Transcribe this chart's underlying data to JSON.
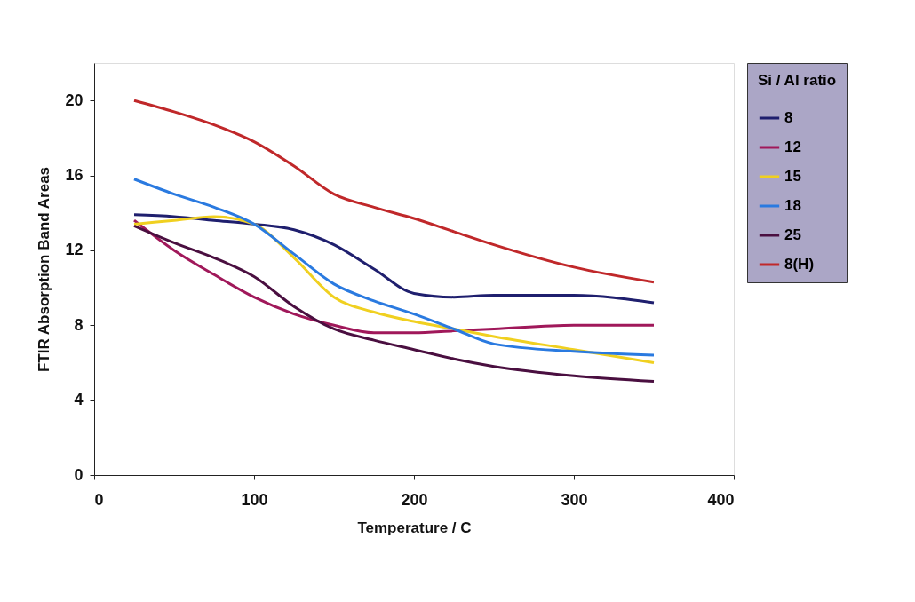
{
  "chart_data": {
    "type": "line",
    "xlabel": "Temperature / C",
    "ylabel": "FTIR Absorption Band Areas",
    "legend_title": "Si / Al ratio",
    "x": [
      25,
      50,
      75,
      100,
      125,
      150,
      175,
      200,
      225,
      250,
      300,
      350
    ],
    "series": [
      {
        "name": "8",
        "color": "#1f1f6e",
        "values": [
          13.9,
          13.8,
          13.6,
          13.4,
          13.1,
          12.3,
          11.0,
          9.7,
          9.5,
          9.6,
          9.6,
          9.2
        ]
      },
      {
        "name": "12",
        "color": "#a0185a",
        "values": [
          13.6,
          12.0,
          10.7,
          9.5,
          8.6,
          8.0,
          7.6,
          7.6,
          7.7,
          7.8,
          8.0,
          8.0
        ]
      },
      {
        "name": "15",
        "color": "#f0d020",
        "values": [
          13.4,
          13.6,
          13.8,
          13.4,
          11.6,
          9.5,
          8.7,
          8.2,
          7.8,
          7.4,
          6.7,
          6.0
        ]
      },
      {
        "name": "18",
        "color": "#2a7ae0",
        "values": [
          15.8,
          15.0,
          14.3,
          13.4,
          11.8,
          10.2,
          9.3,
          8.6,
          7.8,
          7.0,
          6.6,
          6.4
        ]
      },
      {
        "name": "25",
        "color": "#4a0f40",
        "values": [
          13.3,
          12.4,
          11.6,
          10.6,
          9.0,
          7.8,
          7.2,
          6.7,
          6.2,
          5.8,
          5.3,
          5.0
        ]
      },
      {
        "name": "8(H)",
        "color": "#c0282a",
        "values": [
          20.0,
          19.4,
          18.7,
          17.8,
          16.5,
          15.0,
          14.3,
          13.7,
          13.0,
          12.3,
          11.1,
          10.3
        ]
      }
    ],
    "xlim": [
      0,
      400
    ],
    "xticks": [
      0,
      100,
      200,
      300,
      400
    ],
    "ylim": [
      0,
      22
    ],
    "yticks": [
      0,
      4,
      8,
      12,
      16,
      20
    ],
    "grid": false,
    "legend": "right",
    "line_style": "solid",
    "marker": "none"
  }
}
